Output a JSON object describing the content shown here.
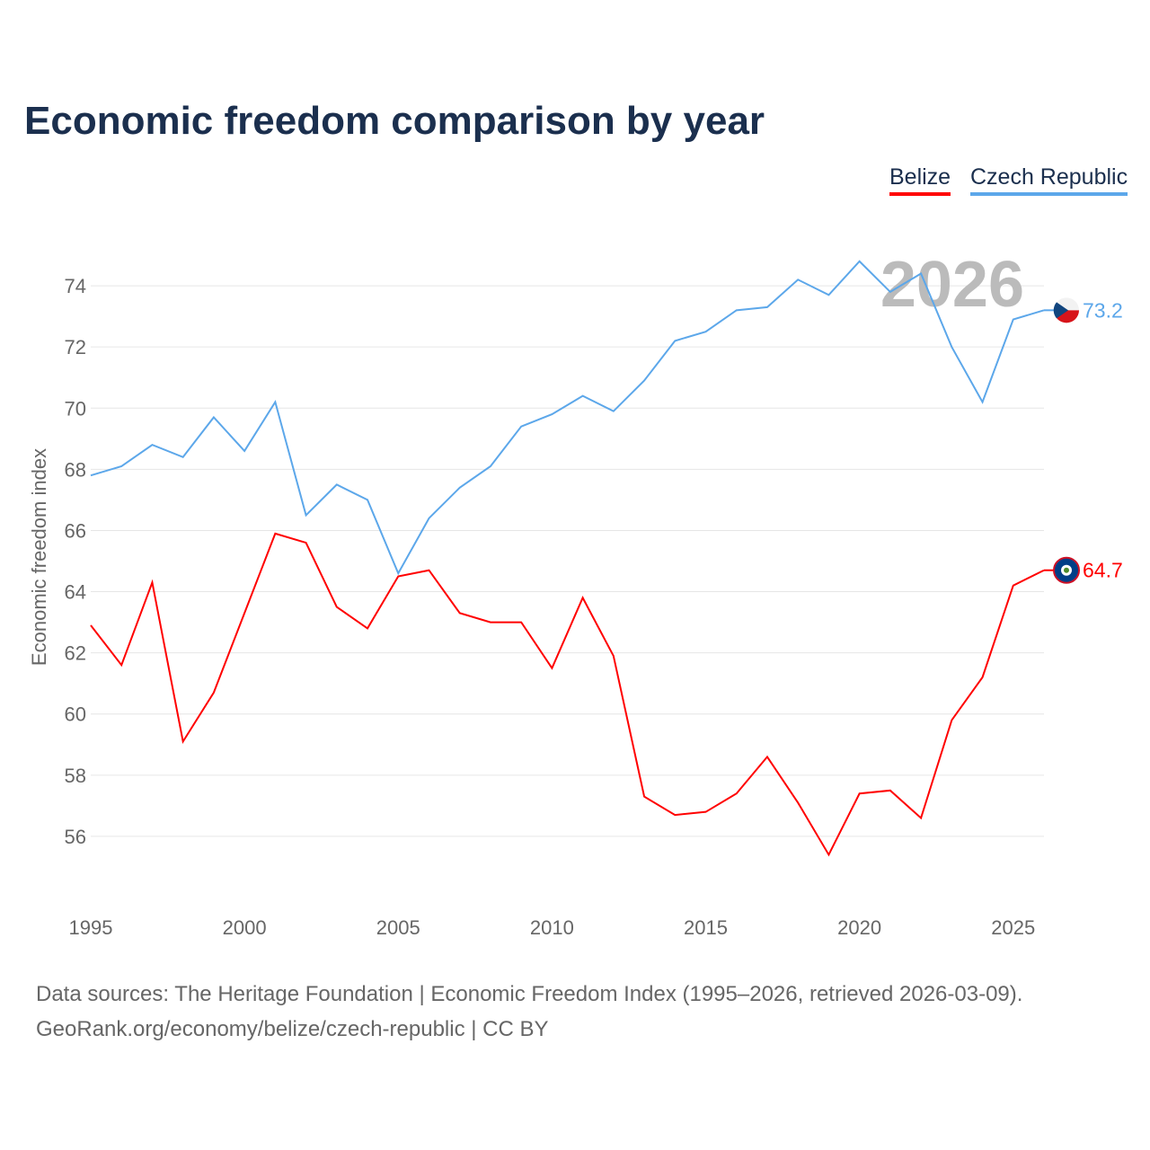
{
  "chart_data": {
    "type": "line",
    "title": "Economic freedom comparison by year",
    "xlabel": "",
    "ylabel": "Economic freedom index",
    "xlim": [
      1995,
      2026
    ],
    "ylim": [
      54,
      76
    ],
    "grid": true,
    "legend_placement": "top-right",
    "x_ticks": [
      1995,
      2000,
      2005,
      2010,
      2015,
      2020,
      2025
    ],
    "y_ticks": [
      56,
      58,
      60,
      62,
      64,
      66,
      68,
      70,
      72,
      74
    ],
    "annotation_year": "2026",
    "x": [
      1995,
      1996,
      1997,
      1998,
      1999,
      2000,
      2001,
      2002,
      2003,
      2004,
      2005,
      2006,
      2007,
      2008,
      2009,
      2010,
      2011,
      2012,
      2013,
      2014,
      2015,
      2016,
      2017,
      2018,
      2019,
      2020,
      2021,
      2022,
      2023,
      2024,
      2025,
      2026
    ],
    "series": [
      {
        "name": "Belize",
        "color": "#ff0000",
        "end_label": "64.7",
        "values": [
          62.9,
          61.6,
          64.3,
          59.1,
          60.7,
          63.3,
          65.9,
          65.6,
          63.5,
          62.8,
          64.5,
          64.7,
          63.3,
          63.0,
          63.0,
          61.5,
          63.8,
          61.9,
          57.3,
          56.7,
          56.8,
          57.4,
          58.6,
          57.1,
          55.4,
          57.4,
          57.5,
          56.6,
          59.8,
          61.2,
          64.2,
          64.7
        ]
      },
      {
        "name": "Czech Republic",
        "color": "#5ca7ea",
        "end_label": "73.2",
        "values": [
          67.8,
          68.1,
          68.8,
          68.4,
          69.7,
          68.6,
          70.2,
          66.5,
          67.5,
          67.0,
          64.6,
          66.4,
          67.4,
          68.1,
          69.4,
          69.8,
          70.4,
          69.9,
          70.9,
          72.2,
          72.5,
          73.2,
          73.3,
          74.2,
          73.7,
          74.8,
          73.8,
          74.4,
          72.0,
          70.2,
          72.9,
          73.2
        ]
      }
    ]
  },
  "footer": {
    "line1": "Data sources: The Heritage Foundation | Economic Freedom Index (1995–2026, retrieved 2026-03-09).",
    "line2": "GeoRank.org/economy/belize/czech-republic | CC BY"
  }
}
